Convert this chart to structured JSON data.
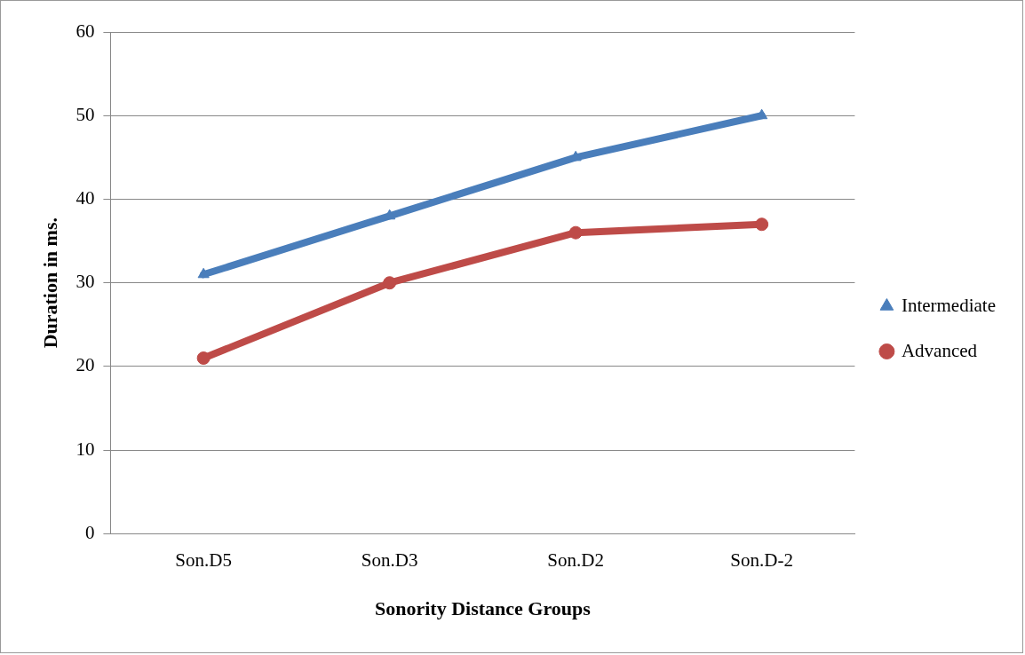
{
  "chart_data": {
    "type": "line",
    "xlabel": "Sonority Distance Groups",
    "ylabel": "Duration in ms.",
    "categories": [
      "Son.D5",
      "Son.D3",
      "Son.D2",
      "Son.D-2"
    ],
    "series": [
      {
        "name": "Intermediate",
        "color": "#4a7ebb",
        "marker": "triangle",
        "values": [
          31,
          38,
          45,
          50
        ]
      },
      {
        "name": "Advanced",
        "color": "#be4b48",
        "marker": "circle",
        "values": [
          21,
          30,
          36,
          37
        ]
      }
    ],
    "ylim": [
      0,
      60
    ],
    "yticks": [
      0,
      10,
      20,
      30,
      40,
      50,
      60
    ],
    "grid": "y",
    "legend": "right",
    "line_style": "solid"
  }
}
